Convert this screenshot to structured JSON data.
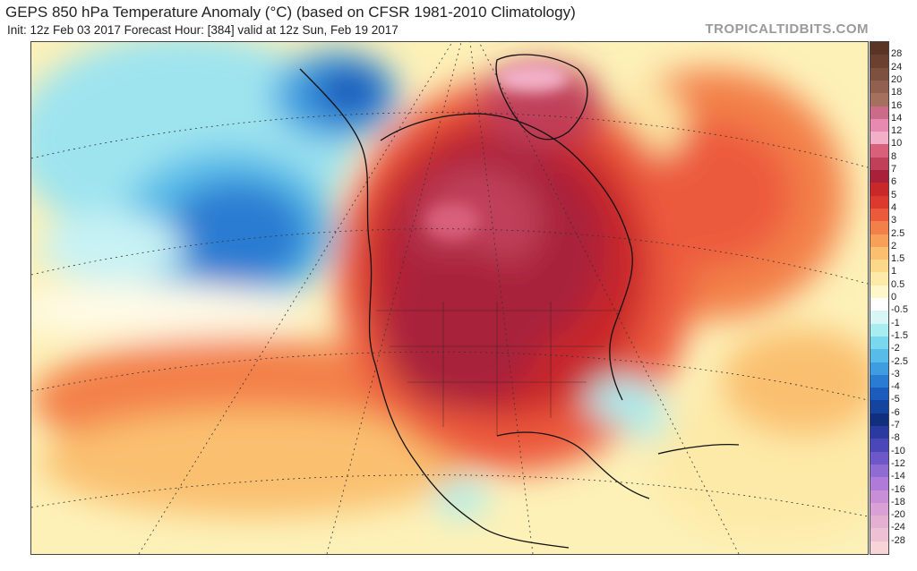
{
  "header": {
    "title": "GEPS 850 hPa Temperature Anomaly (°C) (based on CFSR 1981-2010 Climatology)",
    "subtitle": "Init: 12z Feb 03 2017   Forecast Hour: [384]   valid at 12z Sun, Feb 19 2017",
    "brand": "TROPICALTIDBITS.COM"
  },
  "map": {
    "region": "North America",
    "variable": "850 hPa temperature anomaly",
    "units": "°C"
  },
  "legend": {
    "items": [
      {
        "label": "28",
        "color": "#6b4030"
      },
      {
        "label": "24",
        "color": "#7e5040"
      },
      {
        "label": "20",
        "color": "#92604f"
      },
      {
        "label": "18",
        "color": "#a6705f"
      },
      {
        "label": "16",
        "color": "#cc6a8a"
      },
      {
        "label": "14",
        "color": "#e88ab0"
      },
      {
        "label": "12",
        "color": "#f2b0c8"
      },
      {
        "label": "10",
        "color": "#d9607a"
      },
      {
        "label": "8",
        "color": "#c0405a"
      },
      {
        "label": "7",
        "color": "#a8203a"
      },
      {
        "label": "6",
        "color": "#c8282a"
      },
      {
        "label": "5",
        "color": "#dc3a2e"
      },
      {
        "label": "4",
        "color": "#ec5a3c"
      },
      {
        "label": "3",
        "color": "#f3804a"
      },
      {
        "label": "2.5",
        "color": "#f7a05a"
      },
      {
        "label": "2",
        "color": "#fac070"
      },
      {
        "label": "1.5",
        "color": "#fcd88a"
      },
      {
        "label": "1",
        "color": "#fdeaa8"
      },
      {
        "label": "0.5",
        "color": "#fef7cc"
      },
      {
        "label": "0",
        "color": "#ffffff"
      },
      {
        "label": "-0.5",
        "color": "#d8f6f6"
      },
      {
        "label": "-1",
        "color": "#a8eef0"
      },
      {
        "label": "-1.5",
        "color": "#7ad8ee"
      },
      {
        "label": "-2",
        "color": "#58bce8"
      },
      {
        "label": "-2.5",
        "color": "#3e9ce0"
      },
      {
        "label": "-3",
        "color": "#2a7cd2"
      },
      {
        "label": "-4",
        "color": "#1c5cbc"
      },
      {
        "label": "-5",
        "color": "#14449e"
      },
      {
        "label": "-6",
        "color": "#10307e"
      },
      {
        "label": "-7",
        "color": "#2a3aa0"
      },
      {
        "label": "-8",
        "color": "#4a48b8"
      },
      {
        "label": "-10",
        "color": "#6c58c8"
      },
      {
        "label": "-12",
        "color": "#8e6cd2"
      },
      {
        "label": "-14",
        "color": "#b07ad8"
      },
      {
        "label": "-16",
        "color": "#c88ed6"
      },
      {
        "label": "-18",
        "color": "#d8a0d4"
      },
      {
        "label": "-20",
        "color": "#e4b0d2"
      },
      {
        "label": "-24",
        "color": "#eec0d4"
      },
      {
        "label": "-28",
        "color": "#f6d4d8"
      }
    ]
  }
}
